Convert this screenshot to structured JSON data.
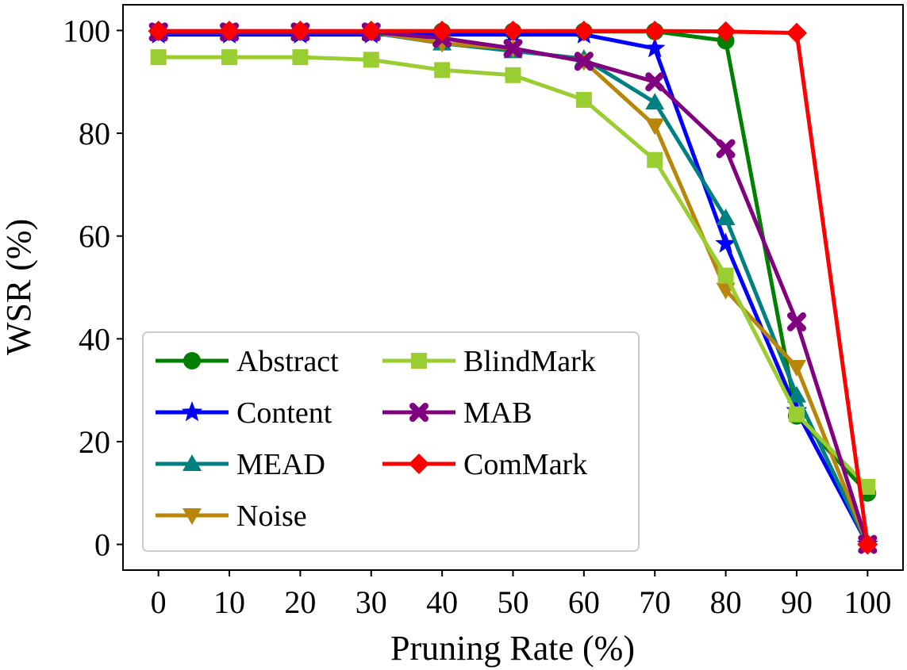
{
  "chart_data": {
    "type": "line",
    "title": "",
    "xlabel": "Pruning Rate (%)",
    "ylabel": "WSR (%)",
    "x": [
      0,
      10,
      20,
      30,
      40,
      50,
      60,
      70,
      80,
      90,
      100
    ],
    "xlim": [
      -5,
      105
    ],
    "ylim": [
      -5,
      105
    ],
    "xticks": [
      "0",
      "10",
      "20",
      "30",
      "40",
      "50",
      "60",
      "70",
      "80",
      "90",
      "100"
    ],
    "yticks": [
      "0",
      "20",
      "40",
      "60",
      "80",
      "100"
    ],
    "legend_position": "lower-left",
    "legend_columns": 2,
    "series": [
      {
        "name": "Abstract",
        "color": "#008000",
        "marker": "circle",
        "values": [
          99.8,
          99.8,
          99.8,
          99.8,
          99.8,
          99.8,
          99.8,
          99.8,
          98.0,
          25.0,
          10.0
        ]
      },
      {
        "name": "Content",
        "color": "#0000ff",
        "marker": "star",
        "values": [
          99.2,
          99.2,
          99.2,
          99.2,
          99.2,
          99.2,
          99.2,
          96.5,
          58.5,
          26.0,
          0.0
        ]
      },
      {
        "name": "MEAD",
        "color": "#008080",
        "marker": "triangle-up",
        "values": [
          99.6,
          99.6,
          99.6,
          99.6,
          97.5,
          96.0,
          94.5,
          86.0,
          63.5,
          29.0,
          0.0
        ]
      },
      {
        "name": "Noise",
        "color": "#b8860b",
        "marker": "triangle-down",
        "values": [
          99.8,
          99.8,
          99.8,
          99.8,
          97.5,
          96.5,
          94.0,
          81.5,
          49.5,
          34.5,
          0.0
        ]
      },
      {
        "name": "BlindMark",
        "color": "#9acd32",
        "marker": "square",
        "values": [
          94.8,
          94.8,
          94.8,
          94.3,
          92.3,
          91.3,
          86.5,
          74.8,
          52.3,
          25.3,
          11.2
        ]
      },
      {
        "name": "MAB",
        "color": "#800080",
        "marker": "x",
        "values": [
          99.7,
          99.7,
          99.7,
          99.7,
          98.5,
          96.5,
          94.0,
          90.0,
          77.0,
          43.3,
          0.0
        ]
      },
      {
        "name": "ComMark",
        "color": "#ff0000",
        "marker": "diamond",
        "values": [
          99.9,
          99.9,
          99.9,
          99.9,
          99.9,
          99.9,
          99.9,
          99.9,
          99.8,
          99.5,
          0.0
        ]
      }
    ]
  }
}
